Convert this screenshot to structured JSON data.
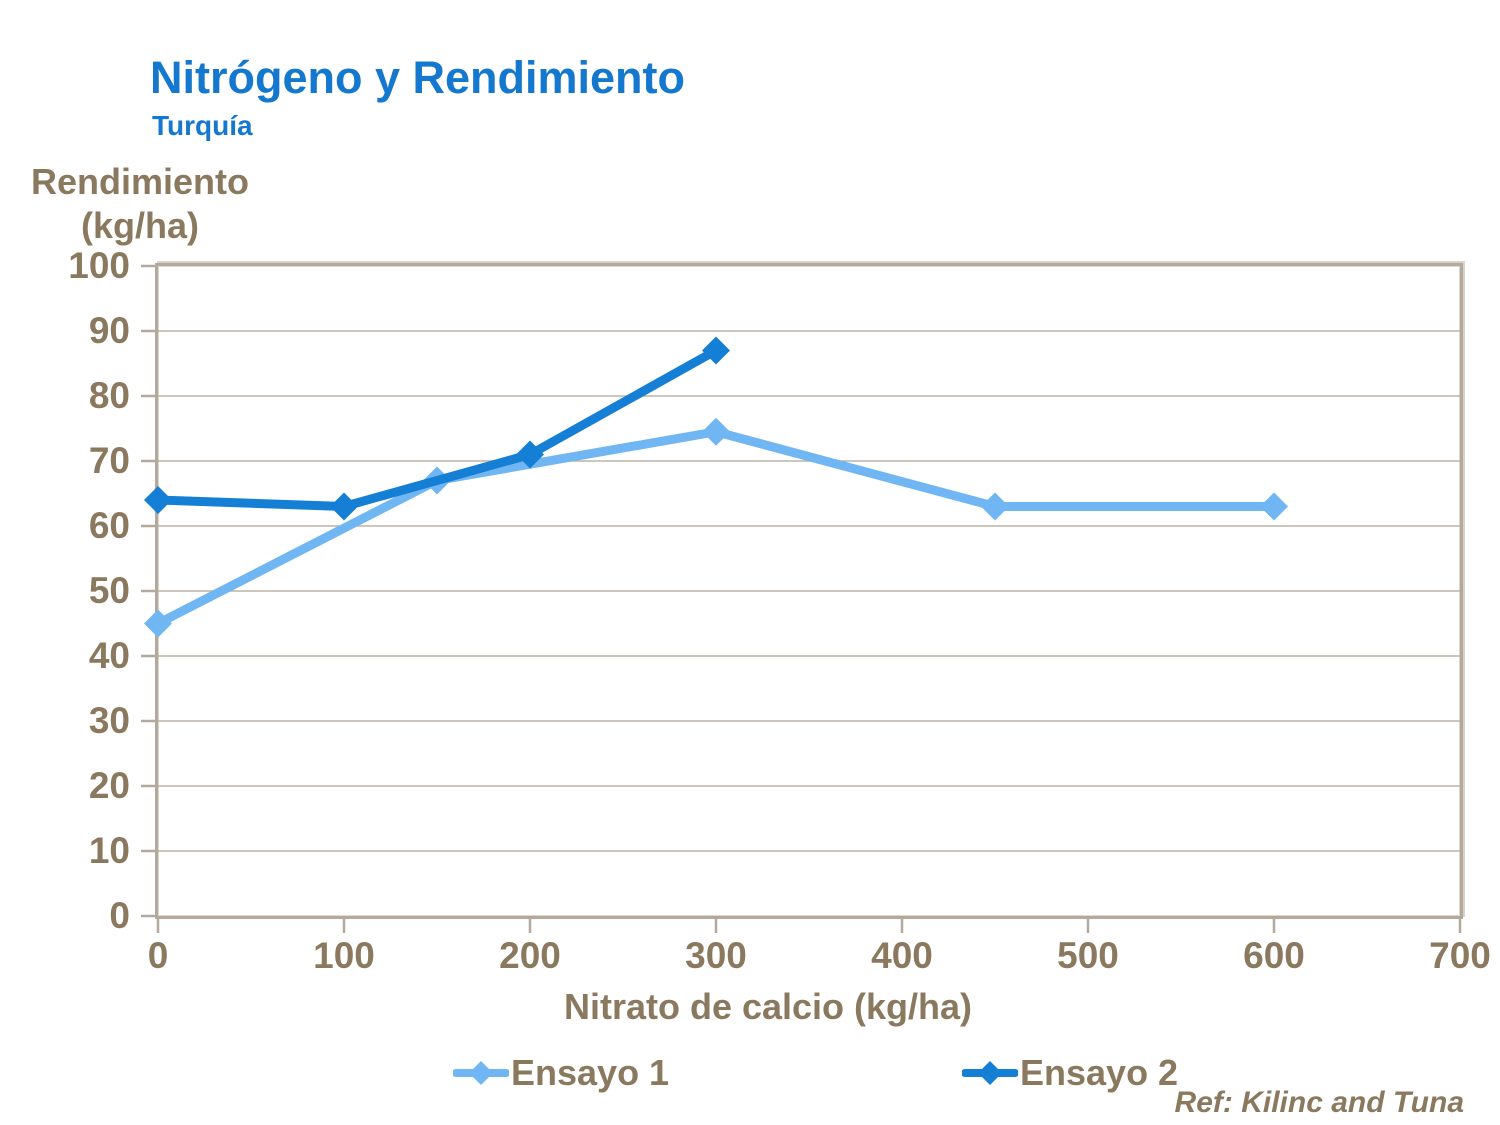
{
  "page": {
    "title": "Nitrógeno y Rendimiento",
    "subtitle": "Turquía"
  },
  "axes": {
    "y_title_line1": "Rendimiento",
    "y_title_line2": "(kg/ha)",
    "x_title": "Nitrato de calcio (kg/ha)"
  },
  "legend": {
    "items": [
      {
        "label": "Ensayo 1",
        "marker": "diamond-line-icon"
      },
      {
        "label": "Ensayo 2",
        "marker": "diamond-line-icon"
      }
    ]
  },
  "reference": "Ref: Kilinc and Tuna",
  "colors": {
    "title_blue": "#1478CE",
    "axis_text_brown": "#8A795E",
    "gridline": "#BCB3A6",
    "plot_frame": "#B3A99C",
    "ensayo1_light_blue": "#6FB6F2",
    "ensayo2_dark_blue": "#157FD6"
  },
  "chart_data": {
    "type": "line",
    "title": "Nitrógeno y Rendimiento",
    "subtitle": "Turquía",
    "xlabel": "Nitrato de calcio (kg/ha)",
    "ylabel": "Rendimiento (kg/ha)",
    "xlim": [
      0,
      700
    ],
    "ylim": [
      0,
      100
    ],
    "xticks": [
      0,
      100,
      200,
      300,
      400,
      500,
      600,
      700
    ],
    "yticks": [
      0,
      10,
      20,
      30,
      40,
      50,
      60,
      70,
      80,
      90,
      100
    ],
    "grid": "horizontal",
    "legend_position": "bottom",
    "marker_shape": "diamond",
    "annotation": "Ref: Kilinc and Tuna",
    "series": [
      {
        "name": "Ensayo 1",
        "color": "#6FB6F2",
        "points": [
          [
            0,
            45
          ],
          [
            150,
            67
          ],
          [
            300,
            74.5
          ],
          [
            450,
            63
          ],
          [
            600,
            63
          ]
        ]
      },
      {
        "name": "Ensayo 2",
        "color": "#157FD6",
        "points": [
          [
            0,
            64
          ],
          [
            100,
            63
          ],
          [
            200,
            71
          ],
          [
            300,
            87
          ]
        ]
      }
    ]
  }
}
